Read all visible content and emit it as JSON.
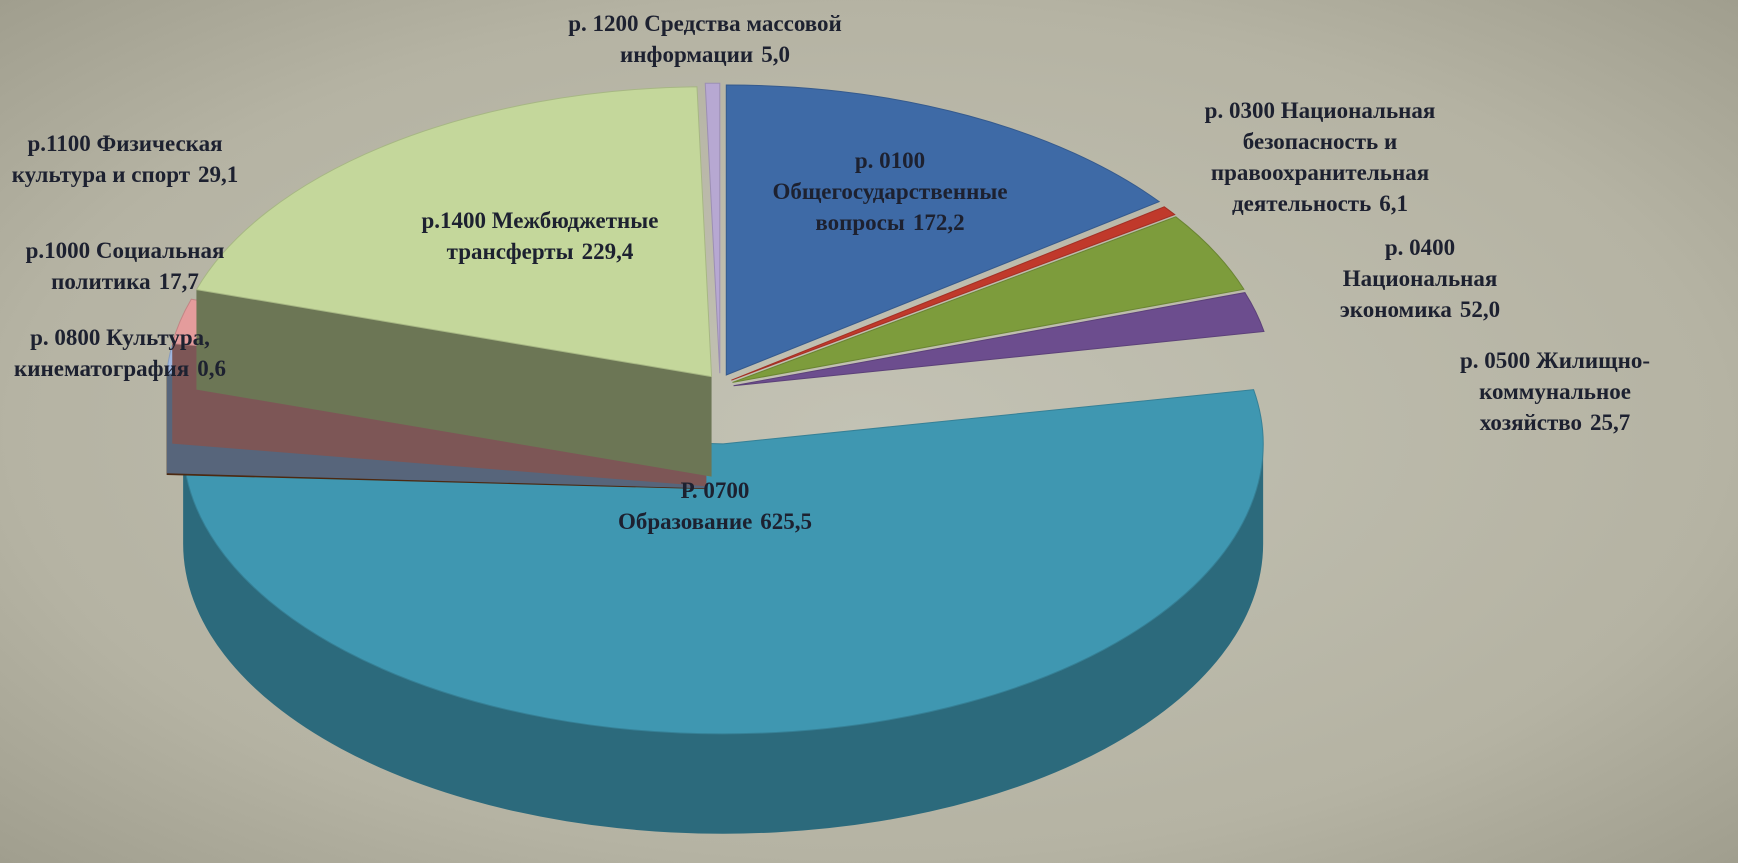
{
  "chart_data": {
    "type": "pie3d",
    "categories": [
      "р. 0100 Общегосударственные вопросы",
      "р. 0300 Национальная безопасность и правоохранительная деятельность",
      "р. 0400 Национальная экономика",
      "р. 0500 Жилищно-коммунальное хозяйство",
      "Р. 0700 Образование",
      "р. 0800 Культура, кинематография",
      "р.1000 Социальная политика",
      "р.1100 Физическая культура и спорт",
      "р.1400 Межбюджетные трансферты",
      "р. 1200 Средства массовой информации"
    ],
    "values": [
      172.2,
      6.1,
      52.0,
      25.7,
      625.5,
      0.6,
      17.7,
      29.1,
      229.4,
      5.0
    ],
    "value_labels": [
      "172,2",
      "6,1",
      "52,0",
      "25,7",
      "625,5",
      "0,6",
      "17,7",
      "29,1",
      "229,4",
      "5,0"
    ],
    "colors": [
      "#3e6aa6",
      "#c0392b",
      "#7d9c3c",
      "#6c4d8e",
      "#3f97b1",
      "#8a4a1f",
      "#9fb7e0",
      "#e49c9c",
      "#c4d79b",
      "#b7a8d2"
    ]
  }
}
